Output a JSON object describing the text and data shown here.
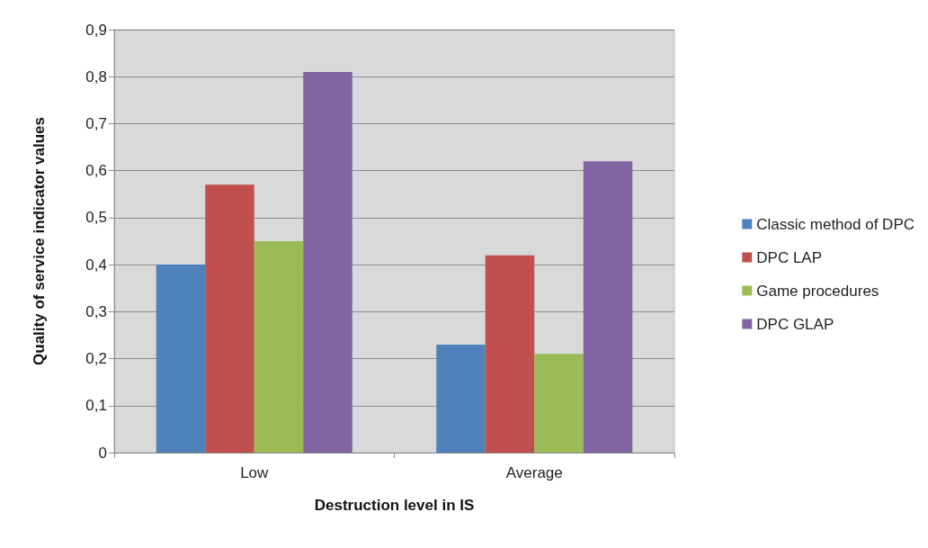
{
  "chart_data": {
    "type": "bar",
    "xlabel": "Destruction level in IS",
    "ylabel": "Quality of service indicator values",
    "categories": [
      "Low",
      "Average"
    ],
    "series": [
      {
        "name": "Classic method of DPC",
        "color": "#4f81bd",
        "values": [
          0.4,
          0.23
        ]
      },
      {
        "name": "DPC LAP",
        "color": "#c0504d",
        "values": [
          0.57,
          0.42
        ]
      },
      {
        "name": "Game procedures",
        "color": "#9bbb59",
        "values": [
          0.45,
          0.21
        ]
      },
      {
        "name": "DPC GLAP",
        "color": "#8064a2",
        "values": [
          0.81,
          0.62
        ]
      }
    ],
    "ylim": [
      0,
      0.9
    ],
    "yticks": [
      0,
      {
        "value": 0.1,
        "label": "0,1"
      },
      {
        "value": 0.2,
        "label": "0,2"
      },
      {
        "value": 0.3,
        "label": "0,3"
      },
      {
        "value": 0.4,
        "label": "0,4"
      },
      {
        "value": 0.5,
        "label": "0,5"
      },
      {
        "value": 0.6,
        "label": "0,6"
      },
      {
        "value": 0.7,
        "label": "0,7"
      },
      {
        "value": 0.8,
        "label": "0,8"
      },
      {
        "value": 0.9,
        "label": "0,9"
      }
    ],
    "grid": "y",
    "legend": "right"
  }
}
